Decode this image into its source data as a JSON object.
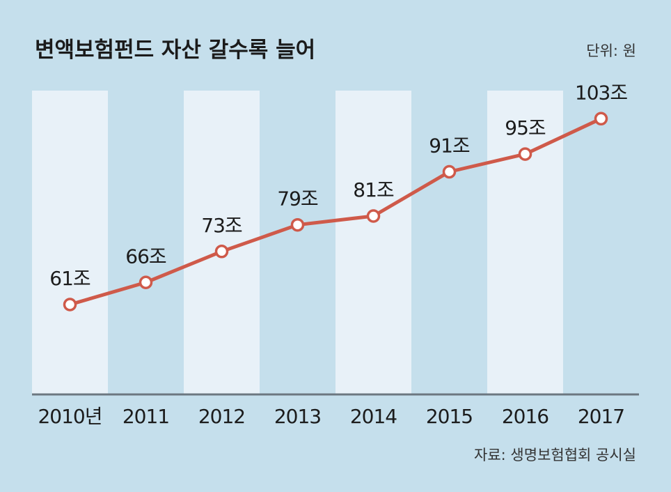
{
  "chart_data": {
    "type": "line",
    "title": "변액보험펀드 자산 갈수록 늘어",
    "unit_note": "단위: 원",
    "source": "자료: 생명보험협회 공시실",
    "categories": [
      "2010년",
      "2011",
      "2012",
      "2013",
      "2014",
      "2015",
      "2016",
      "2017"
    ],
    "series": [
      {
        "values": [
          61,
          66,
          73,
          79,
          81,
          91,
          95,
          103
        ],
        "value_labels": [
          "61조",
          "66조",
          "73조",
          "79조",
          "81조",
          "91조",
          "95조",
          "103조"
        ]
      }
    ],
    "ylim": [
      0,
      110
    ],
    "grid": false,
    "style": {
      "background": "#c5dfec",
      "band_color": "#e8f1f8",
      "line_color": "#cf5a4a",
      "axis_color": "#6c7780"
    }
  }
}
